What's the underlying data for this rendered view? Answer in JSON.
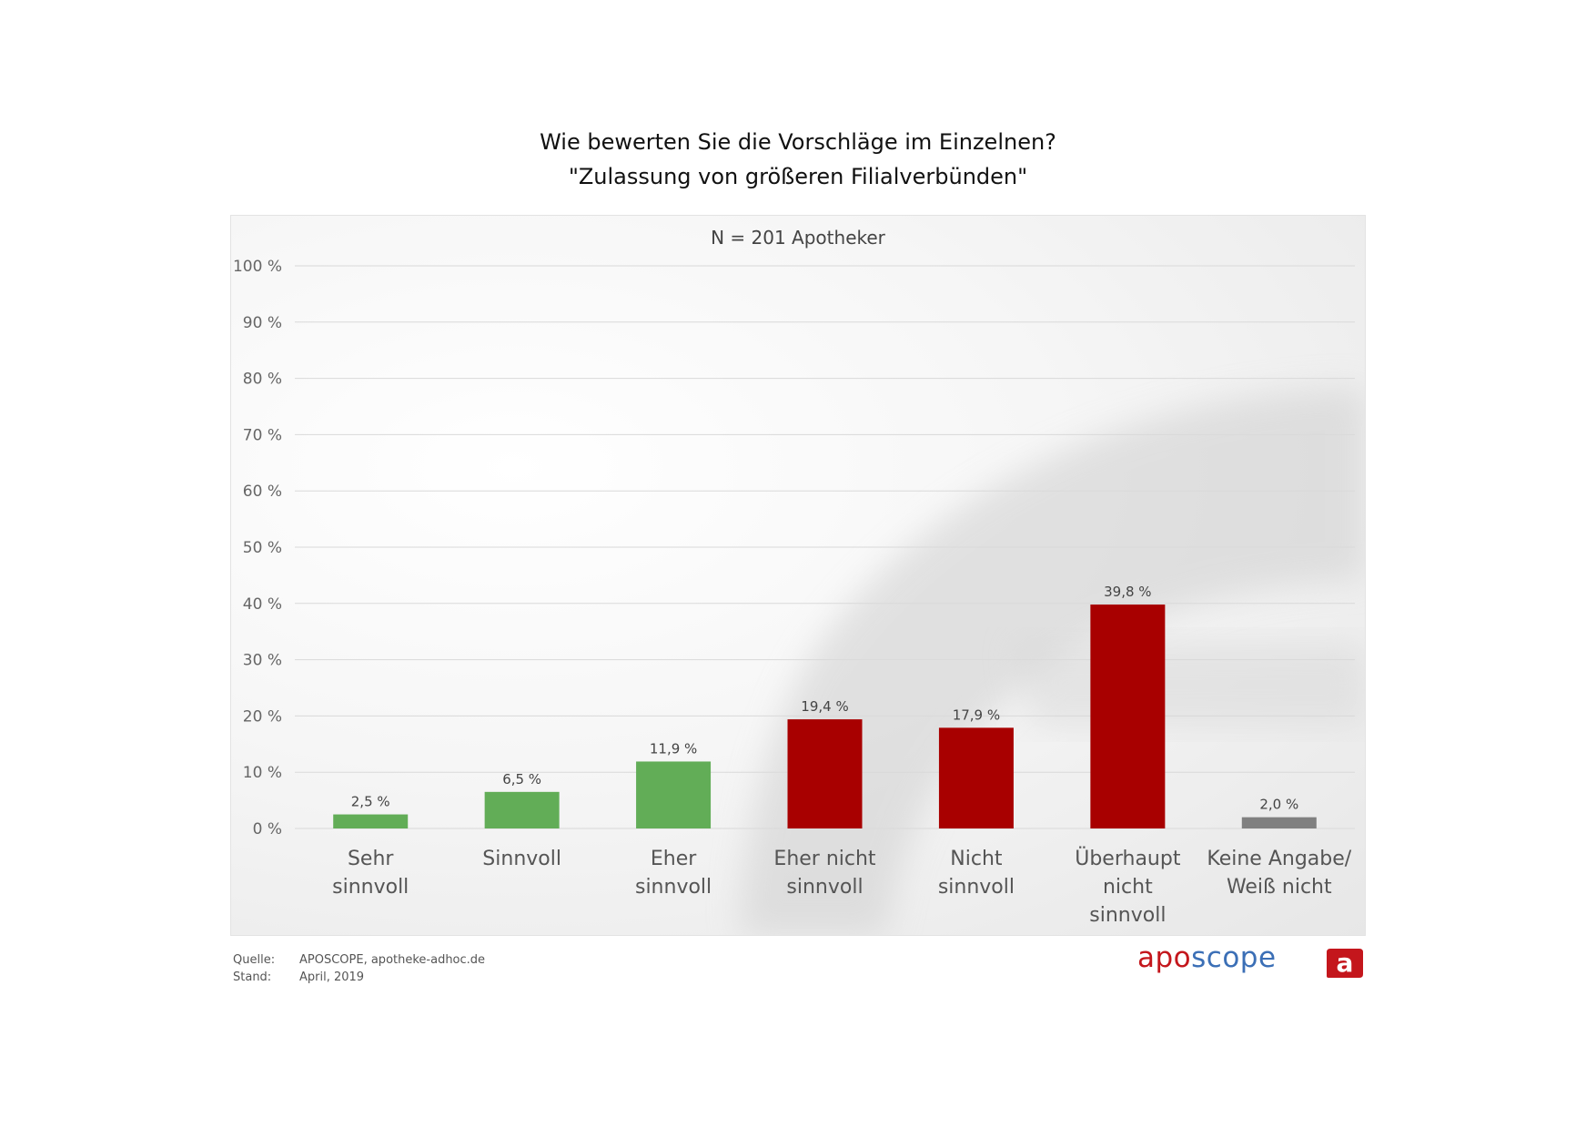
{
  "title": {
    "line1": "Wie bewerten Sie die Vorschläge im Einzelnen?",
    "line2": "\"Zulassung von größeren Filialverbünden\""
  },
  "chart_data": {
    "type": "bar",
    "subtitle": "N = 201 Apotheker",
    "categories": [
      [
        "Sehr",
        "sinnvoll"
      ],
      [
        "Sinnvoll"
      ],
      [
        "Eher",
        "sinnvoll"
      ],
      [
        "Eher nicht",
        "sinnvoll"
      ],
      [
        "Nicht",
        "sinnvoll"
      ],
      [
        "Überhaupt",
        "nicht",
        "sinnvoll"
      ],
      [
        "Keine Angabe/",
        "Weiß nicht"
      ]
    ],
    "values": [
      2.5,
      6.5,
      11.9,
      19.4,
      17.9,
      39.8,
      2.0
    ],
    "value_labels": [
      "2,5 %",
      "6,5 %",
      "11,9 %",
      "19,4 %",
      "17,9 %",
      "39,8 %",
      "2,0 %"
    ],
    "colors": [
      "#62ad57",
      "#62ad57",
      "#62ad57",
      "#a80000",
      "#a80000",
      "#a80000",
      "#808080"
    ],
    "ylim": [
      0,
      100
    ],
    "y_ticks": [
      0,
      10,
      20,
      30,
      40,
      50,
      60,
      70,
      80,
      90,
      100
    ],
    "y_tick_labels": [
      "0 %",
      "10 %",
      "20 %",
      "30 %",
      "40 %",
      "50 %",
      "60 %",
      "70 %",
      "80 %",
      "90 %",
      "100 %"
    ],
    "grid": true,
    "gridline_color": "#d9d9d9"
  },
  "footer": {
    "source_label": "Quelle:",
    "source_value": "APOSCOPE, apotheke-adhoc.de",
    "date_label": "Stand:",
    "date_value": "April, 2019"
  },
  "brand": {
    "logo_part1": "apo",
    "logo_part2": "scope",
    "icon_letter": "a",
    "color_red": "#c4161c",
    "color_blue": "#3b6fb6"
  }
}
